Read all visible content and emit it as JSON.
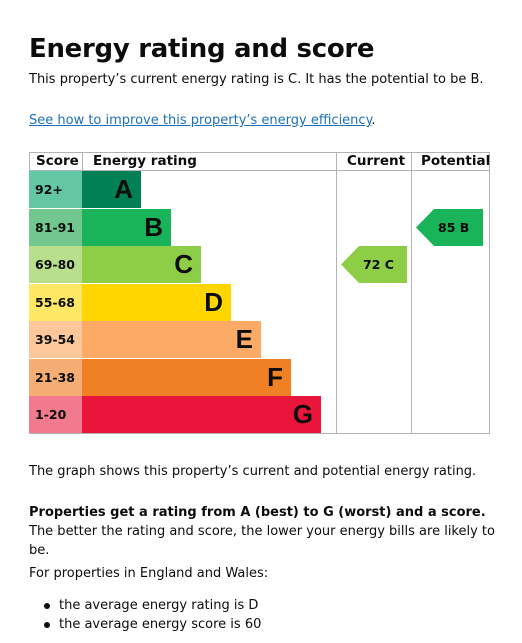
{
  "page": {
    "title": "Energy rating and score",
    "intro": "This property’s current energy rating is C. It has the potential to be B.",
    "improve_link": "See how to improve this property’s energy efficiency",
    "improve_link_suffix": ".",
    "graph_text": "The graph shows this property’s current and potential energy rating.",
    "rating_text_bold": "Properties get a rating from A (best) to G (worst) and a score.",
    "rating_text_rest": " The better the rating and score, the lower your energy bills are likely to be.",
    "england_wales": "For properties in England and Wales:",
    "bullets": [
      "the average energy rating is D",
      "the average energy score is 60"
    ]
  },
  "chart": {
    "headers": {
      "score": "Score",
      "rating": "Energy rating",
      "current": "Current",
      "potential": "Potential"
    },
    "bands": [
      {
        "score": "92+",
        "letter": "A",
        "color": "#008054",
        "score_bg": "#64c7a4"
      },
      {
        "score": "81-91",
        "letter": "B",
        "color": "#19b459",
        "score_bg": "#72c78e"
      },
      {
        "score": "69-80",
        "letter": "C",
        "color": "#8dce46",
        "score_bg": "#b8e08c"
      },
      {
        "score": "55-68",
        "letter": "D",
        "color": "#ffd500",
        "score_bg": "#ffe866"
      },
      {
        "score": "39-54",
        "letter": "E",
        "color": "#fcaa65",
        "score_bg": "#fdc79a"
      },
      {
        "score": "21-38",
        "letter": "F",
        "color": "#ef8023",
        "score_bg": "#f5ad73"
      },
      {
        "score": "1-20",
        "letter": "G",
        "color": "#e9153b",
        "score_bg": "#f27a8f"
      }
    ],
    "current": {
      "score": "72",
      "letter": "C",
      "band_index": 2,
      "color": "#8dce46"
    },
    "potential": {
      "score": "85",
      "letter": "B",
      "band_index": 1,
      "color": "#19b459"
    }
  }
}
